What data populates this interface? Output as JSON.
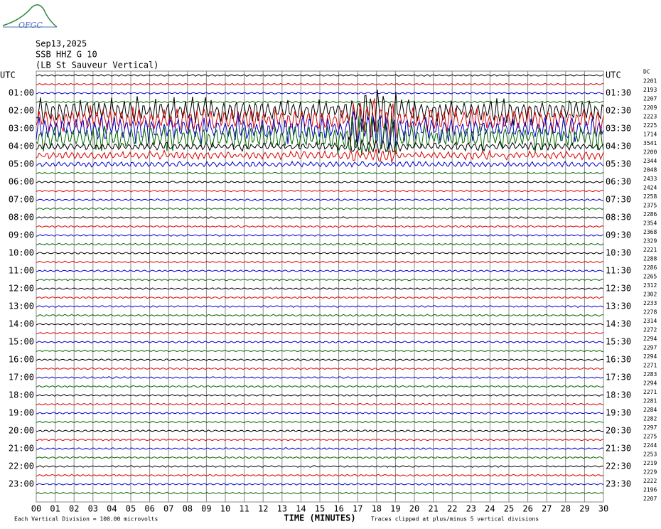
{
  "logo": "OFGC",
  "header": {
    "date": "Sep13,2025",
    "station": "SSB HHZ G 10",
    "location": "(LB St Sauveur Vertical)"
  },
  "left_labels": [
    "UTC",
    "01:00",
    "02:00",
    "03:00",
    "04:00",
    "05:00",
    "06:00",
    "07:00",
    "08:00",
    "09:00",
    "10:00",
    "11:00",
    "12:00",
    "13:00",
    "14:00",
    "15:00",
    "16:00",
    "17:00",
    "18:00",
    "19:00",
    "20:00",
    "21:00",
    "22:00",
    "23:00"
  ],
  "right_labels": [
    "UTC",
    "01:30",
    "02:30",
    "03:30",
    "04:30",
    "05:30",
    "06:30",
    "07:30",
    "08:30",
    "09:30",
    "10:30",
    "11:30",
    "12:30",
    "13:30",
    "14:30",
    "15:30",
    "16:30",
    "17:30",
    "18:30",
    "19:30",
    "20:30",
    "21:30",
    "22:30",
    "23:30"
  ],
  "dc_title": "DC",
  "dc_values": [
    2201,
    2193,
    2207,
    2209,
    2223,
    2225,
    1714,
    3541,
    2200,
    2344,
    2048,
    2433,
    2424,
    2258,
    2375,
    2286,
    2354,
    2368,
    2329,
    2221,
    2288,
    2286,
    2265,
    2312,
    2302,
    2233,
    2278,
    2314,
    2272,
    2294,
    2297,
    2294,
    2271,
    2283,
    2294,
    2271,
    2281,
    2284,
    2282,
    2297,
    2275,
    2244,
    2253,
    2219,
    2229,
    2222,
    2196,
    2207
  ],
  "x_ticks": [
    "00",
    "01",
    "02",
    "03",
    "04",
    "05",
    "06",
    "07",
    "08",
    "09",
    "10",
    "11",
    "12",
    "13",
    "14",
    "15",
    "16",
    "17",
    "18",
    "19",
    "20",
    "21",
    "22",
    "23",
    "24",
    "25",
    "26",
    "27",
    "28",
    "29",
    "30"
  ],
  "x_title": "TIME (MINUTES)",
  "footer": {
    "scale": "Each Vertical Division =  100.00 microvolts",
    "clip": "Traces clipped at plus/minus 5 vertical divisions"
  }
}
